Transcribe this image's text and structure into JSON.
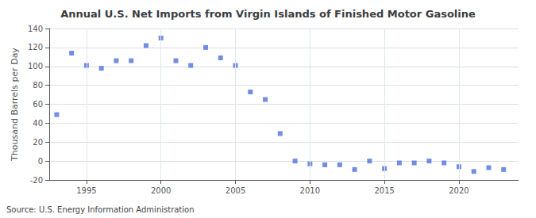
{
  "chart_data": {
    "type": "scatter",
    "title": "Annual U.S. Net Imports from Virgin Islands of Finished Motor Gasoline",
    "ylabel": "Thousand Barrels per Day",
    "annotation": "Source: U.S. Energy Information Administration",
    "x": [
      1993,
      1994,
      1995,
      1996,
      1997,
      1998,
      1999,
      2000,
      2001,
      2002,
      2003,
      2004,
      2005,
      2006,
      2007,
      2008,
      2009,
      2010,
      2011,
      2012,
      2013,
      2014,
      2015,
      2016,
      2017,
      2018,
      2019,
      2020,
      2021,
      2022,
      2023
    ],
    "values": [
      49,
      114,
      101,
      98,
      106,
      106,
      122,
      130,
      106,
      101,
      120,
      109,
      101,
      73,
      65,
      29,
      0,
      -3,
      -4,
      -4,
      -9,
      0,
      -8,
      -2,
      -2,
      0,
      -2,
      -6,
      -11,
      -7,
      -9
    ],
    "marker": "square",
    "xlim": [
      1992.5,
      2024
    ],
    "xticks": [
      1995,
      2000,
      2005,
      2010,
      2015,
      2020
    ],
    "ylim": [
      -20,
      140
    ],
    "yticks": [
      -20,
      0,
      20,
      40,
      60,
      80,
      100,
      120,
      140
    ],
    "grid": true
  }
}
